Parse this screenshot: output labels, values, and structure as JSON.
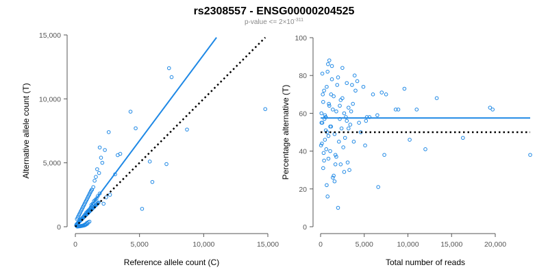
{
  "header": {
    "title": "rs2308557 - ENSG00000204525",
    "subtitle_prefix": "p-value <= 2×10",
    "subtitle_exponent": "-311"
  },
  "colors": {
    "points": "#1e88e5",
    "fit_line": "#1e88e5",
    "reference_line": "#000000"
  },
  "chart_data": [
    {
      "type": "scatter",
      "xlabel": "Reference allele count (C)",
      "ylabel": "Alternative allele count (T)",
      "xlim": [
        0,
        15000
      ],
      "ylim": [
        0,
        15000
      ],
      "x_ticks": [
        0,
        5000,
        10000,
        15000
      ],
      "x_tick_labels": [
        "0",
        "5,000",
        "10,000",
        "15,000"
      ],
      "y_ticks": [
        0,
        5000,
        10000,
        15000
      ],
      "y_tick_labels": [
        "0",
        "5,000",
        "10,000",
        "15,000"
      ],
      "fit_line": {
        "x": [
          0,
          11000
        ],
        "y": [
          0,
          14800
        ]
      },
      "reference_line": {
        "x": [
          0,
          14800
        ],
        "y": [
          0,
          14800
        ]
      },
      "points": {
        "x": [
          14800,
          7300,
          7500,
          8700,
          4300,
          4700,
          7100,
          5200,
          6000,
          5800,
          2600,
          2300,
          3500,
          3300,
          3100,
          1900,
          2000,
          2100,
          1700,
          1850,
          1600,
          1500,
          1400,
          1300,
          1900,
          2400,
          2700,
          2200,
          1200,
          1100,
          1000,
          900,
          800,
          700,
          600,
          500,
          400,
          300,
          200,
          100,
          950,
          850,
          750,
          650,
          550,
          450,
          350,
          250,
          150,
          1250,
          1350,
          1150,
          1050,
          1450,
          1550,
          1650,
          1750,
          900,
          800,
          700,
          600,
          500,
          400,
          300,
          200,
          1100,
          1000,
          950,
          850,
          750,
          650,
          550,
          450,
          350,
          250,
          150,
          120,
          180,
          220,
          280,
          320,
          380,
          420,
          480,
          520,
          580,
          620,
          680,
          720,
          780,
          820,
          880,
          920,
          980,
          1020,
          1080,
          1120,
          1180,
          1220,
          1280,
          60,
          90,
          130,
          170,
          210,
          260,
          310,
          360,
          410,
          460,
          510,
          560,
          610,
          660,
          710,
          760,
          810,
          860,
          910,
          960,
          1010,
          1060,
          1110,
          1160,
          1210,
          1260,
          1310,
          1360,
          1410,
          1460,
          1510,
          1560,
          1610,
          1660,
          1710,
          1760,
          1810
        ],
        "y": [
          9200,
          12400,
          11700,
          7600,
          9000,
          7700,
          4900,
          1400,
          3500,
          5100,
          7400,
          6000,
          5700,
          5600,
          4100,
          6200,
          5400,
          5000,
          4500,
          4200,
          3900,
          3600,
          3100,
          2900,
          2600,
          2300,
          2500,
          1800,
          1500,
          1300,
          1100,
          1000,
          900,
          800,
          700,
          600,
          500,
          400,
          300,
          200,
          1200,
          1100,
          950,
          820,
          700,
          600,
          480,
          350,
          220,
          1700,
          1800,
          1400,
          1300,
          2000,
          2100,
          2200,
          2400,
          300,
          200,
          150,
          100,
          80,
          60,
          40,
          30,
          400,
          350,
          250,
          180,
          120,
          90,
          70,
          50,
          35,
          25,
          15,
          600,
          700,
          800,
          900,
          1000,
          1100,
          1200,
          1300,
          1400,
          1500,
          1600,
          1700,
          1800,
          1900,
          2000,
          2100,
          2200,
          2300,
          2400,
          2500,
          2600,
          2700,
          2800,
          2900,
          100,
          150,
          200,
          250,
          300,
          350,
          400,
          450,
          500,
          550,
          600,
          650,
          700,
          750,
          800,
          850,
          900,
          950,
          1000,
          1050,
          1100,
          1150,
          1200,
          1250,
          1300,
          1350,
          1400,
          1450,
          1500,
          1550,
          1600,
          1650,
          1700,
          1750,
          1800,
          1850,
          1900
        ]
      }
    },
    {
      "type": "scatter",
      "xlabel": "Total number of reads",
      "ylabel": "Percentage alternative (T)",
      "xlim": [
        0,
        24000
      ],
      "ylim": [
        0,
        100
      ],
      "x_ticks": [
        0,
        5000,
        10000,
        15000,
        20000
      ],
      "x_tick_labels": [
        "0",
        "5,000",
        "10,000",
        "15,000",
        "20,000"
      ],
      "y_ticks": [
        0,
        20,
        40,
        60,
        80,
        100
      ],
      "y_tick_labels": [
        "0",
        "20",
        "40",
        "60",
        "80",
        "100"
      ],
      "fit_line": {
        "x": [
          0,
          24000
        ],
        "y": [
          57.5,
          57.5
        ]
      },
      "reference_line": {
        "x": [
          0,
          24000
        ],
        "y": [
          50,
          50
        ]
      },
      "points": {
        "x": [
          24000,
          19700,
          19400,
          16300,
          13300,
          12000,
          11000,
          10200,
          9600,
          8900,
          8600,
          7500,
          7300,
          7000,
          6600,
          6500,
          6000,
          5600,
          5300,
          5200,
          5100,
          4900,
          4600,
          4400,
          4200,
          4000,
          3900,
          3700,
          3600,
          3500,
          3400,
          3300,
          3200,
          3100,
          3000,
          2900,
          2800,
          2700,
          2600,
          2500,
          2400,
          2300,
          2200,
          2100,
          2000,
          1900,
          1800,
          1700,
          1600,
          1500,
          1400,
          1300,
          1200,
          1100,
          1000,
          900,
          800,
          700,
          600,
          500,
          400,
          300,
          200,
          100,
          50,
          2000,
          1500,
          1000,
          800,
          600,
          400,
          2500,
          3000,
          1200,
          1700,
          2200,
          900,
          700,
          500,
          300,
          150,
          1800,
          1400,
          1100,
          850,
          650,
          450,
          250,
          2300,
          2700,
          3200,
          3800,
          1300,
          1600,
          950,
          750,
          550,
          350,
          200,
          100
        ],
        "y": [
          38,
          62,
          63,
          47,
          68,
          41,
          62,
          46,
          73,
          62,
          62,
          70,
          38,
          71,
          21,
          59,
          70,
          58,
          58,
          56,
          43,
          74,
          50,
          55,
          77,
          72,
          80,
          65,
          75,
          61,
          54,
          30,
          63,
          34,
          76,
          58,
          47,
          29,
          42,
          68,
          52,
          67,
          57,
          45,
          10,
          75,
          61,
          33,
          49,
          69,
          26,
          85,
          53,
          40,
          64,
          36,
          82,
          22,
          58,
          46,
          72,
          31,
          55,
          60,
          43,
          79,
          27,
          88,
          16,
          51,
          35,
          84,
          56,
          70,
          38,
          64,
          48,
          74,
          59,
          66,
          44,
          37,
          62,
          53,
          86,
          41,
          57,
          70,
          33,
          60,
          52,
          45,
          78,
          24,
          65,
          50,
          58,
          39,
          81,
          55
        ]
      }
    }
  ]
}
